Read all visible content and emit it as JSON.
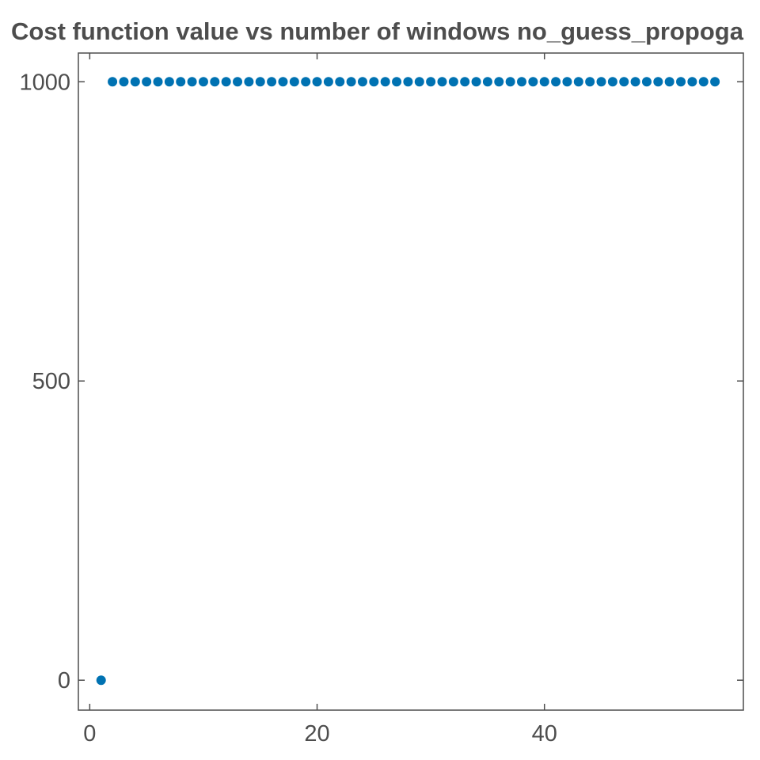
{
  "chart_data": {
    "type": "scatter",
    "title": "Cost function value vs number of windows no_guess_propoga",
    "xlabel": "",
    "ylabel": "",
    "xlim": [
      -1,
      57.5
    ],
    "ylim": [
      -50,
      1048
    ],
    "xticks": [
      0,
      20,
      40
    ],
    "yticks": [
      0,
      500,
      1000
    ],
    "xtick_labels": [
      "0",
      "20",
      "40"
    ],
    "ytick_labels": [
      "0",
      "500",
      "1000"
    ],
    "grid": false,
    "marker_color": "#0072b2",
    "series": [
      {
        "x": [
          1,
          2,
          3,
          4,
          5,
          6,
          7,
          8,
          9,
          10,
          11,
          12,
          13,
          14,
          15,
          16,
          17,
          18,
          19,
          20,
          21,
          22,
          23,
          24,
          25,
          26,
          27,
          28,
          29,
          30,
          31,
          32,
          33,
          34,
          35,
          36,
          37,
          38,
          39,
          40,
          41,
          42,
          43,
          44,
          45,
          46,
          47,
          48,
          49,
          50,
          51,
          52,
          53,
          54,
          55
        ],
        "y": [
          0,
          1000,
          1000,
          1000,
          1000,
          1000,
          1000,
          1000,
          1000,
          1000,
          1000,
          1000,
          1000,
          1000,
          1000,
          1000,
          1000,
          1000,
          1000,
          1000,
          1000,
          1000,
          1000,
          1000,
          1000,
          1000,
          1000,
          1000,
          1000,
          1000,
          1000,
          1000,
          1000,
          1000,
          1000,
          1000,
          1000,
          1000,
          1000,
          1000,
          1000,
          1000,
          1000,
          1000,
          1000,
          1000,
          1000,
          1000,
          1000,
          1000,
          1000,
          1000,
          1000,
          1000,
          1000
        ]
      }
    ]
  }
}
